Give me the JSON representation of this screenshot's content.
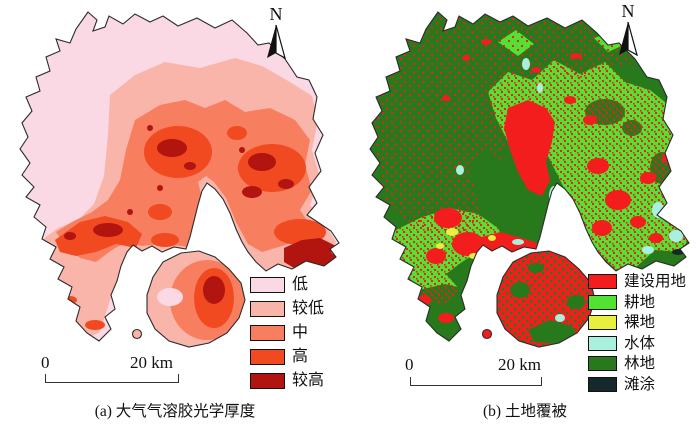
{
  "colors": {
    "aod_low": "#fad9e4",
    "aod_lower": "#f9b5aa",
    "aod_mid": "#f77e5f",
    "aod_high": "#f24a20",
    "aod_higher": "#b21410",
    "land_construction": "#f41d1e",
    "land_crop": "#52e232",
    "land_bare": "#e8ef3e",
    "land_water": "#aaf0df",
    "land_forest": "#27791b",
    "land_tidal": "#15282c",
    "outline": "#2b2b2b"
  },
  "panels": [
    {
      "id": "a",
      "caption": "(a) 大气气溶胶光学厚度",
      "north_label": "N",
      "scalebar": {
        "start": "0",
        "end": "20 km"
      },
      "legend": {
        "items": [
          {
            "label": "低",
            "color": "aod_low"
          },
          {
            "label": "较低",
            "color": "aod_lower"
          },
          {
            "label": "中",
            "color": "aod_mid"
          },
          {
            "label": "高",
            "color": "aod_high"
          },
          {
            "label": "较高",
            "color": "aod_higher"
          }
        ]
      }
    },
    {
      "id": "b",
      "caption": "(b) 土地覆被",
      "north_label": "N",
      "scalebar": {
        "start": "0",
        "end": "20 km"
      },
      "legend": {
        "items": [
          {
            "label": "建设用地",
            "color": "land_construction"
          },
          {
            "label": "耕地",
            "color": "land_crop"
          },
          {
            "label": "裸地",
            "color": "land_bare"
          },
          {
            "label": "水体",
            "color": "land_water"
          },
          {
            "label": "林地",
            "color": "land_forest"
          },
          {
            "label": "滩涂",
            "color": "land_tidal"
          }
        ]
      }
    }
  ]
}
